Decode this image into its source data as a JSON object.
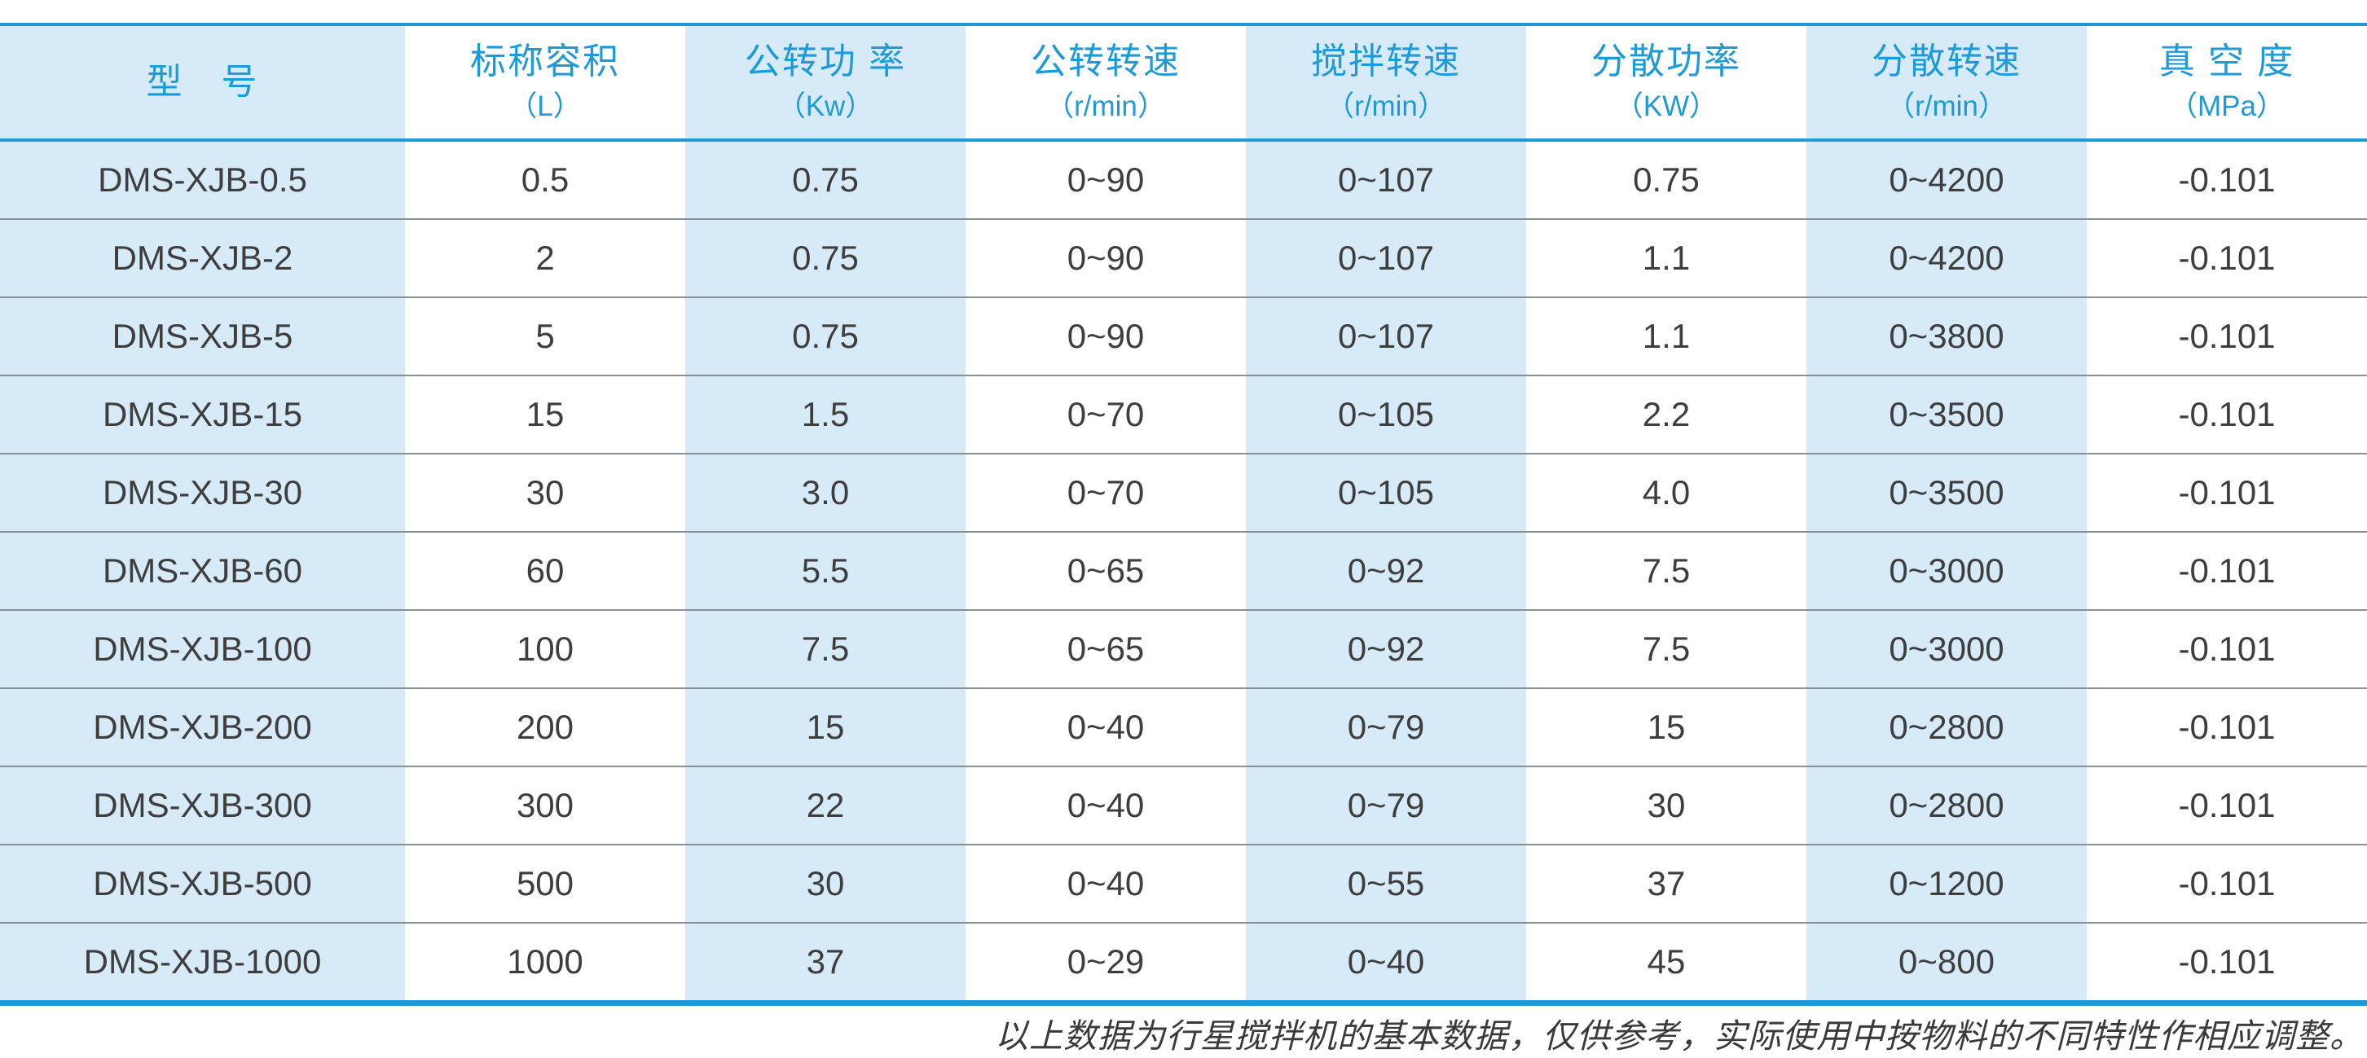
{
  "colors": {
    "accent_blue": "#1E9AD6",
    "stripe_blue": "#D7EAF8",
    "body_text": "#3E3E3E",
    "row_separator": "#8a8f94"
  },
  "table": {
    "columns": [
      {
        "title": "型　号",
        "unit": "",
        "shade": "blue"
      },
      {
        "title": "标称容积",
        "unit": "（L）",
        "shade": "white"
      },
      {
        "title": "公转功 率",
        "unit": "（Kw）",
        "shade": "blue"
      },
      {
        "title": "公转转速",
        "unit": "（r/min）",
        "shade": "white"
      },
      {
        "title": "搅拌转速",
        "unit": "（r/min）",
        "shade": "blue"
      },
      {
        "title": "分散功率",
        "unit": "（KW）",
        "shade": "white"
      },
      {
        "title": "分散转速",
        "unit": "（r/min）",
        "shade": "blue"
      },
      {
        "title": "真 空 度",
        "unit": "（MPa）",
        "shade": "white"
      }
    ],
    "rows": [
      [
        "DMS-XJB-0.5",
        "0.5",
        "0.75",
        "0~90",
        "0~107",
        "0.75",
        "0~4200",
        "-0.101"
      ],
      [
        "DMS-XJB-2",
        "2",
        "0.75",
        "0~90",
        "0~107",
        "1.1",
        "0~4200",
        "-0.101"
      ],
      [
        "DMS-XJB-5",
        "5",
        "0.75",
        "0~90",
        "0~107",
        "1.1",
        "0~3800",
        "-0.101"
      ],
      [
        "DMS-XJB-15",
        "15",
        "1.5",
        "0~70",
        "0~105",
        "2.2",
        "0~3500",
        "-0.101"
      ],
      [
        "DMS-XJB-30",
        "30",
        "3.0",
        "0~70",
        "0~105",
        "4.0",
        "0~3500",
        "-0.101"
      ],
      [
        "DMS-XJB-60",
        "60",
        "5.5",
        "0~65",
        "0~92",
        "7.5",
        "0~3000",
        "-0.101"
      ],
      [
        "DMS-XJB-100",
        "100",
        "7.5",
        "0~65",
        "0~92",
        "7.5",
        "0~3000",
        "-0.101"
      ],
      [
        "DMS-XJB-200",
        "200",
        "15",
        "0~40",
        "0~79",
        "15",
        "0~2800",
        "-0.101"
      ],
      [
        "DMS-XJB-300",
        "300",
        "22",
        "0~40",
        "0~79",
        "30",
        "0~2800",
        "-0.101"
      ],
      [
        "DMS-XJB-500",
        "500",
        "30",
        "0~40",
        "0~55",
        "37",
        "0~1200",
        "-0.101"
      ],
      [
        "DMS-XJB-1000",
        "1000",
        "37",
        "0~29",
        "0~40",
        "45",
        "0~800",
        "-0.101"
      ]
    ]
  },
  "footer": {
    "note": "以上数据为行星搅拌机的基本数据，仅供参考，实际使用中按物料的不同特性作相应调整。"
  }
}
